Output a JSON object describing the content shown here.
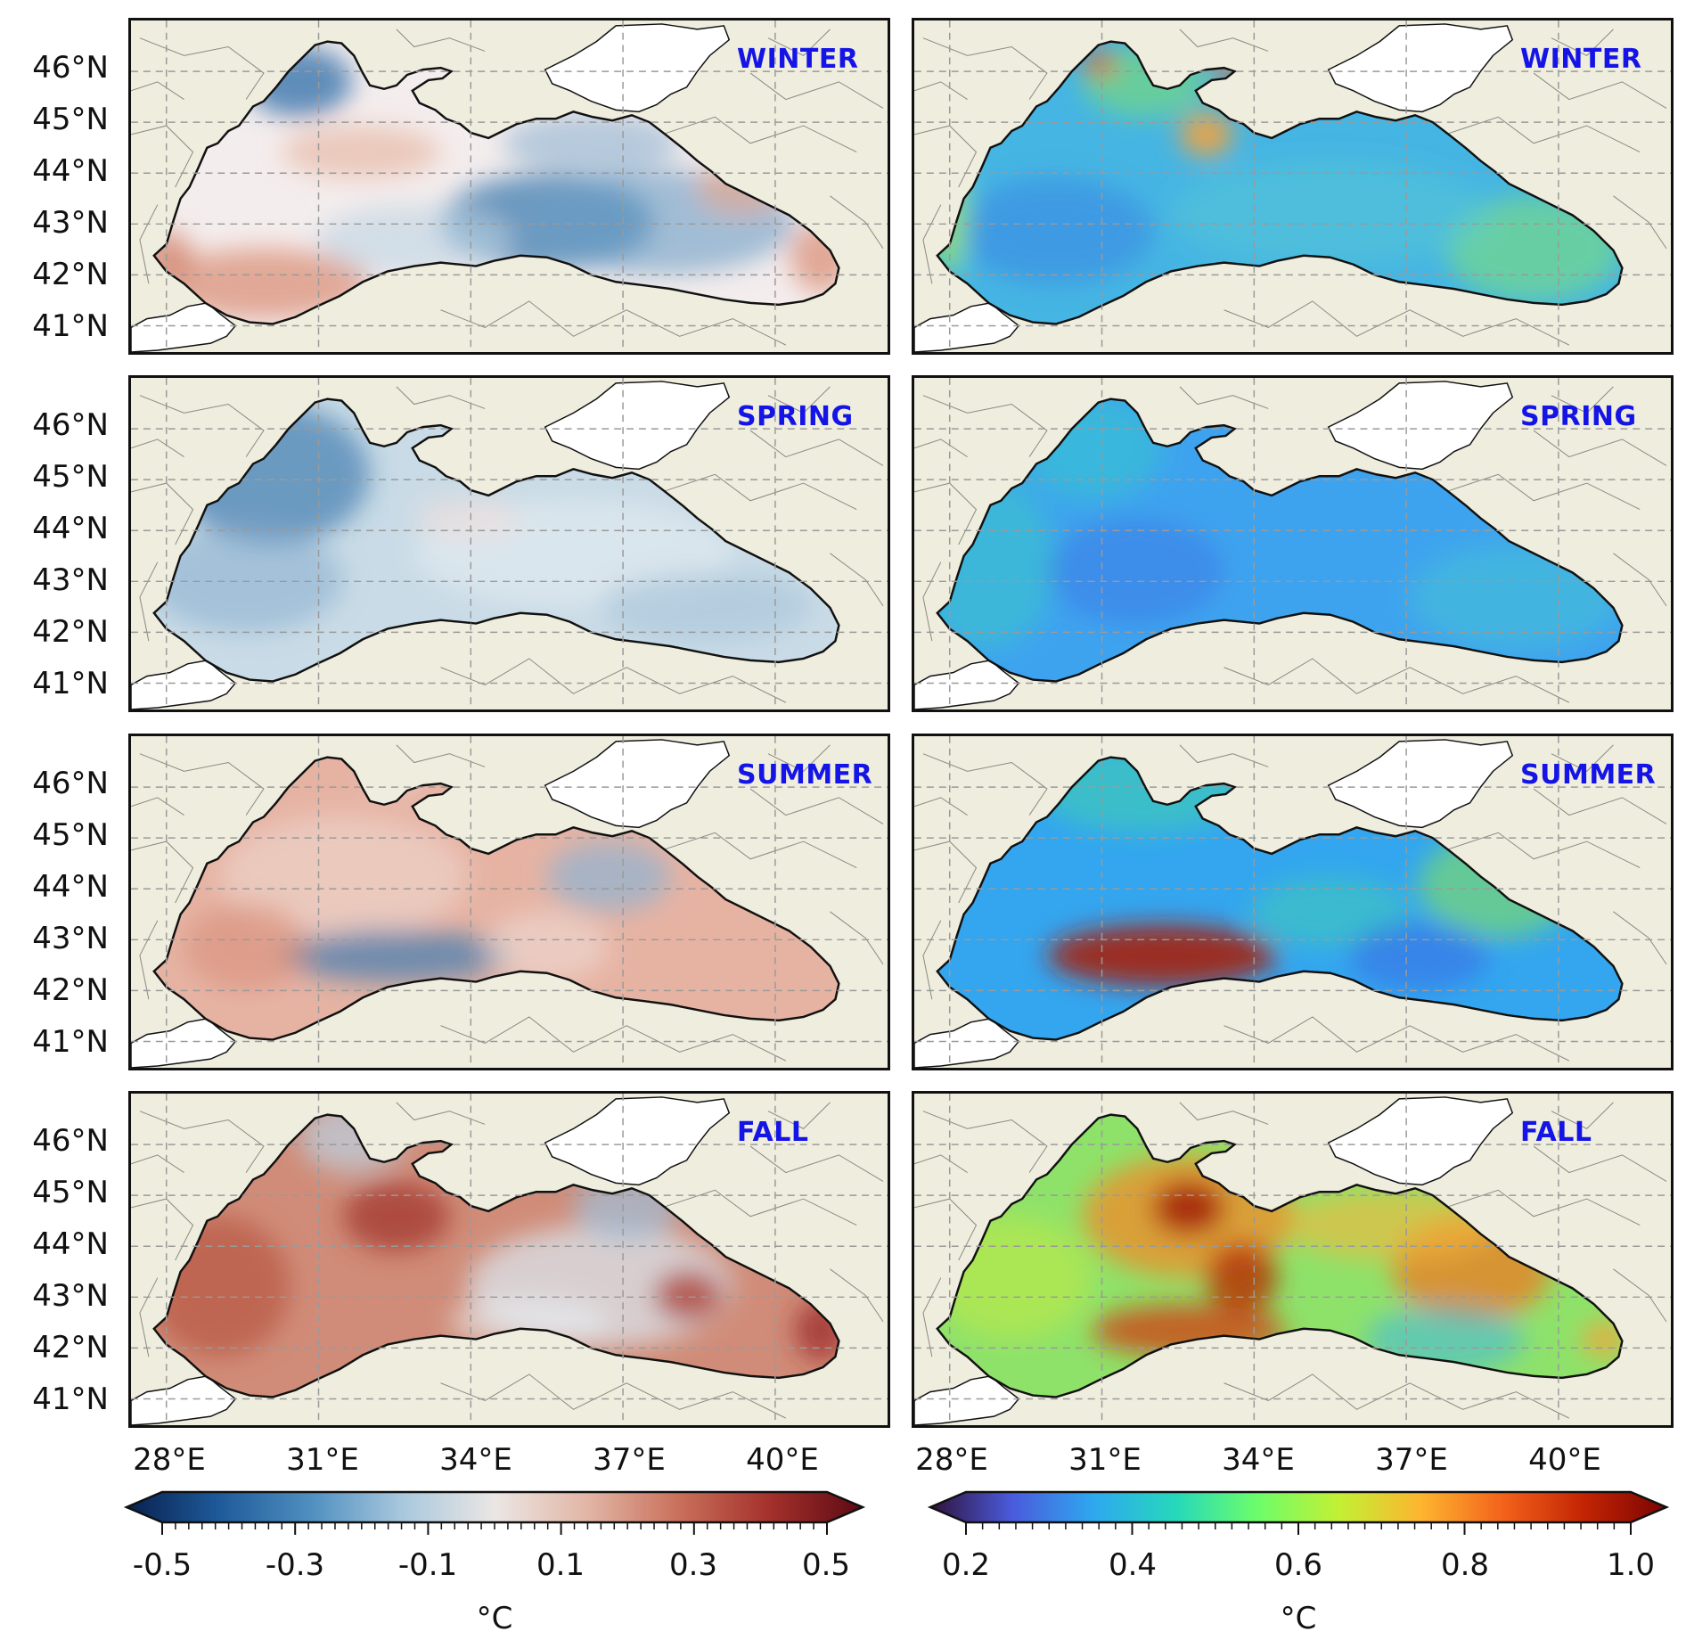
{
  "panels": [
    {
      "season": "WINTER",
      "map": "anomaly"
    },
    {
      "season": "WINTER",
      "map": "magnitude"
    },
    {
      "season": "SPRING",
      "map": "anomaly"
    },
    {
      "season": "SPRING",
      "map": "magnitude"
    },
    {
      "season": "SUMMER",
      "map": "anomaly"
    },
    {
      "season": "SUMMER",
      "map": "magnitude"
    },
    {
      "season": "FALL",
      "map": "anomaly"
    },
    {
      "season": "FALL",
      "map": "magnitude"
    }
  ],
  "lat_labels": [
    "46°N",
    "45°N",
    "44°N",
    "43°N",
    "42°N",
    "41°N"
  ],
  "lon_labels": [
    "28°E",
    "31°E",
    "34°E",
    "37°E",
    "40°E"
  ],
  "colorbar_left": {
    "ticks": [
      "-0.5",
      "-0.3",
      "-0.1",
      "0.1",
      "0.3",
      "0.5"
    ],
    "unit": "°C",
    "colormap": "diverging blue-white-red",
    "range": [
      -0.5,
      0.5
    ],
    "colors": [
      "#08204f",
      "#1e5a99",
      "#4f8fc0",
      "#a9c8dd",
      "#ebe6e4",
      "#e2b6a6",
      "#c9705b",
      "#a4302b",
      "#5c0a14"
    ]
  },
  "colorbar_right": {
    "ticks": [
      "0.2",
      "0.4",
      "0.6",
      "0.8",
      "1.0"
    ],
    "unit": "°C",
    "colormap": "turbo",
    "range": [
      0.2,
      1.0
    ],
    "colors": [
      "#30123b",
      "#4a5bdc",
      "#2ea8ef",
      "#26d8bb",
      "#6dfd6a",
      "#c3f034",
      "#fdb52f",
      "#f3621b",
      "#c22403",
      "#7a0403"
    ]
  },
  "colors": {
    "land": "#efedde",
    "season_label": "#1414e6"
  }
}
